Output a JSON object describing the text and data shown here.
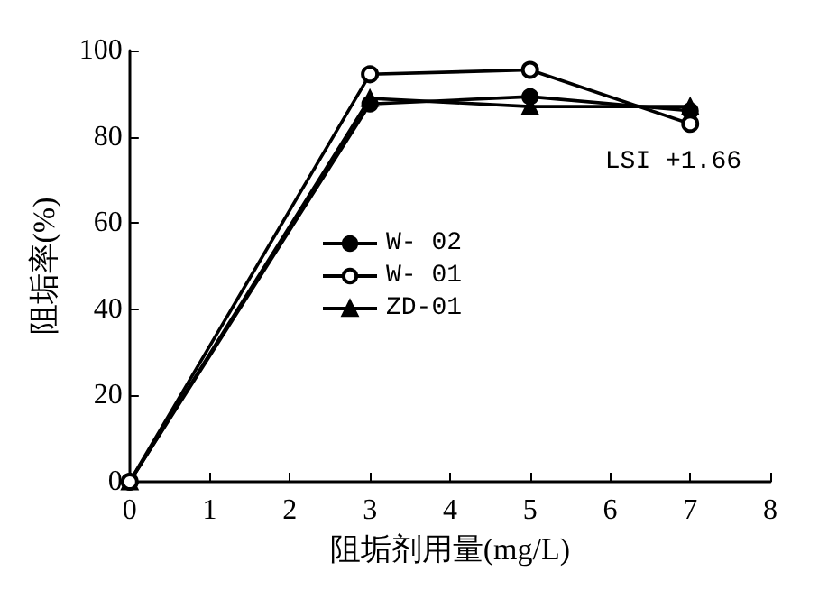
{
  "chart_data": {
    "type": "line",
    "xlabel": "阻垢剂用量(mg/L)",
    "ylabel": "阻垢率(%)",
    "x": [
      0,
      3,
      5,
      7
    ],
    "series": [
      {
        "name": "W- 02",
        "color": "#000000",
        "values": [
          0,
          87.6,
          89.3,
          86
        ],
        "marker": "circle"
      },
      {
        "name": "W- 01",
        "color": "#000000",
        "values": [
          0,
          94.5,
          95.5,
          83
        ],
        "marker": "circle"
      },
      {
        "name": "ZD-01",
        "color": "#000000",
        "values": [
          0,
          88.9,
          87,
          87
        ],
        "marker": "triangle"
      }
    ],
    "xlim": [
      0,
      8
    ],
    "xticks": [
      0,
      1,
      2,
      3,
      4,
      5,
      6,
      7,
      8
    ],
    "ylim": [
      0,
      100
    ],
    "yticks": [
      0,
      20,
      40,
      60,
      80,
      100
    ],
    "annotations": [
      "LSI +1.66"
    ],
    "grid": false,
    "legend": "left"
  }
}
